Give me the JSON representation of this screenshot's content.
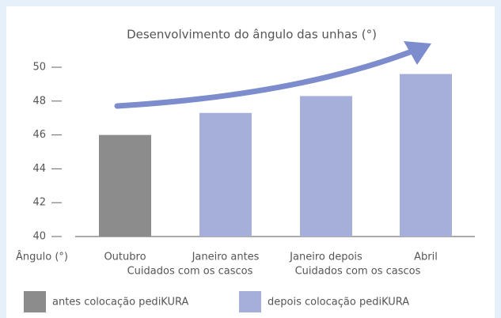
{
  "chart_data": {
    "type": "bar",
    "title": "Desenvolvimento do ângulo das unhas (°)",
    "ylabel": "Ângulo (°)",
    "categories": [
      "Outubro",
      "Janeiro antes",
      "Janeiro depois",
      "Abril"
    ],
    "values": [
      46,
      47.3,
      48.3,
      49.6
    ],
    "colors": [
      "#8c8c8c",
      "#a6afd9",
      "#a6afd9",
      "#a6afd9"
    ],
    "annotations": [
      "Cuidados com os cascos",
      "Cuidados com os cascos"
    ],
    "ylim": [
      40,
      50
    ],
    "yticks": [
      40,
      42,
      44,
      46,
      48,
      50
    ],
    "legend": [
      {
        "label": "antes colocação pediKURA",
        "color": "#8c8c8c"
      },
      {
        "label": "depois colocação pediKURA",
        "color": "#a6afd9"
      }
    ]
  }
}
